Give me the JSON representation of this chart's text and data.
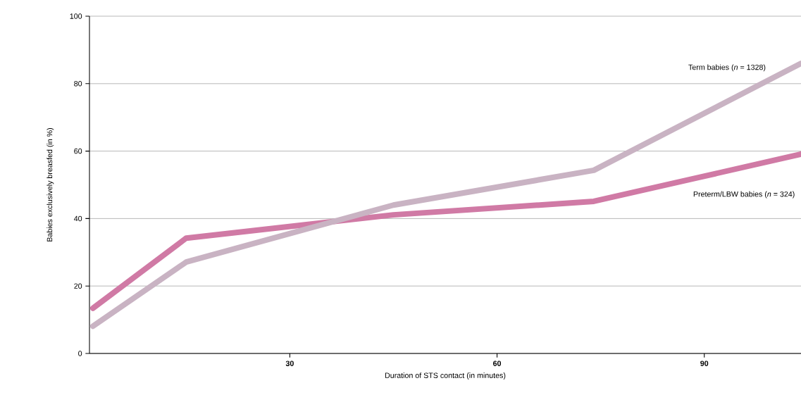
{
  "chart_data": {
    "type": "line",
    "xlabel": "Duration of STS contact (in minutes)",
    "ylabel": "Babies exclusively breasfed (in %)",
    "x": [
      1.5,
      15,
      45,
      74,
      104
    ],
    "series": [
      {
        "name": "Preterm/LBW babies (*n* = 324)",
        "color": "#d07aa5",
        "values": [
          13.4,
          34.2,
          41.1,
          45.1,
          59.1
        ]
      },
      {
        "name": "Term babies (*n* = 1328)",
        "color": "#c9b3c3",
        "values": [
          8.1,
          27.1,
          44,
          54.3,
          86
        ]
      }
    ],
    "xlim": [
      1,
      104
    ],
    "ylim": [
      0,
      100
    ],
    "xticks": [
      30,
      60,
      90
    ],
    "yticks": [
      0,
      20,
      40,
      60,
      80,
      100
    ],
    "grid": "y",
    "marker": "none",
    "line_style": "solid"
  }
}
